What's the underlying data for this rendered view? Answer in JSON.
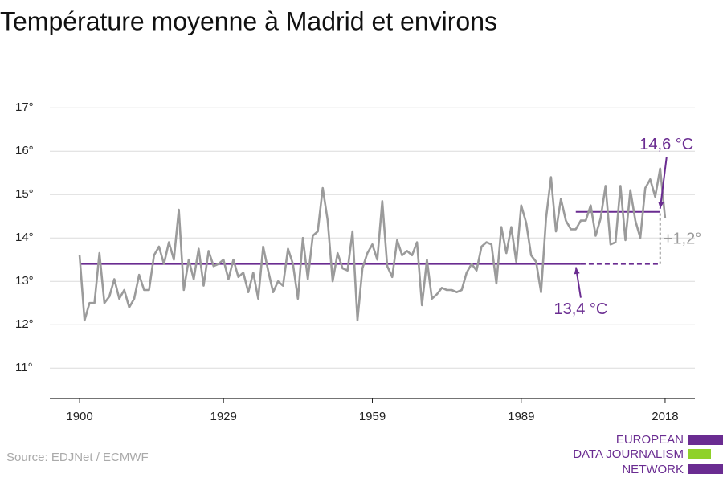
{
  "chart_data": {
    "type": "line",
    "title": "Température moyenne à Madrid et environs",
    "source": "Source: EDJNet / ECMWF",
    "logo": [
      "EUROPEAN",
      "DATA JOURNALISM",
      "NETWORK"
    ],
    "x": [
      1900,
      1901,
      1902,
      1903,
      1904,
      1905,
      1906,
      1907,
      1908,
      1909,
      1910,
      1911,
      1912,
      1913,
      1914,
      1915,
      1916,
      1917,
      1918,
      1919,
      1920,
      1921,
      1922,
      1923,
      1924,
      1925,
      1926,
      1927,
      1928,
      1929,
      1930,
      1931,
      1932,
      1933,
      1934,
      1935,
      1936,
      1937,
      1938,
      1939,
      1940,
      1941,
      1942,
      1943,
      1944,
      1945,
      1946,
      1947,
      1948,
      1949,
      1950,
      1951,
      1952,
      1953,
      1954,
      1955,
      1956,
      1957,
      1958,
      1959,
      1960,
      1961,
      1962,
      1963,
      1964,
      1965,
      1966,
      1967,
      1968,
      1969,
      1970,
      1971,
      1972,
      1973,
      1974,
      1975,
      1976,
      1977,
      1978,
      1979,
      1980,
      1981,
      1982,
      1983,
      1984,
      1985,
      1986,
      1987,
      1988,
      1989,
      1990,
      1991,
      1992,
      1993,
      1994,
      1995,
      1996,
      1997,
      1998,
      1999,
      2000,
      2001,
      2002,
      2003,
      2004,
      2005,
      2006,
      2007,
      2008,
      2009,
      2010,
      2011,
      2012,
      2013,
      2014,
      2015,
      2016,
      2017,
      2018
    ],
    "series": [
      {
        "name": "Température",
        "color": "#9b9b9b",
        "values": [
          13.6,
          12.1,
          12.5,
          12.5,
          13.65,
          12.5,
          12.65,
          13.05,
          12.6,
          12.8,
          12.4,
          12.6,
          13.15,
          12.8,
          12.8,
          13.6,
          13.8,
          13.4,
          13.9,
          13.5,
          14.65,
          12.8,
          13.5,
          13.05,
          13.75,
          12.9,
          13.7,
          13.35,
          13.4,
          13.5,
          13.05,
          13.5,
          13.1,
          13.2,
          12.75,
          13.2,
          12.6,
          13.8,
          13.25,
          12.75,
          13.0,
          12.9,
          13.75,
          13.4,
          12.6,
          14.0,
          13.05,
          14.05,
          14.15,
          15.15,
          14.4,
          13.0,
          13.65,
          13.3,
          13.25,
          14.15,
          12.1,
          13.3,
          13.65,
          13.85,
          13.5,
          14.85,
          13.35,
          13.1,
          13.95,
          13.6,
          13.7,
          13.6,
          13.9,
          12.45,
          13.5,
          12.6,
          12.7,
          12.85,
          12.8,
          12.8,
          12.75,
          12.8,
          13.2,
          13.4,
          13.25,
          13.8,
          13.9,
          13.85,
          12.95,
          14.25,
          13.65,
          14.25,
          13.45,
          14.75,
          14.35,
          13.6,
          13.45,
          12.75,
          14.45,
          15.4,
          14.15,
          14.9,
          14.4,
          14.2,
          14.2,
          14.4,
          14.4,
          14.75,
          14.05,
          14.45,
          15.2,
          13.85,
          13.9,
          15.2,
          13.95,
          15.1,
          14.4,
          14.0,
          15.15,
          15.35,
          14.95,
          15.6,
          14.45
        ]
      }
    ],
    "reference_lines": [
      {
        "label": "13,4 °C",
        "value": 13.4,
        "from": 1900,
        "solid_to": 2001,
        "to": 2017,
        "color": "#6a2c91"
      },
      {
        "label": "14,6 °C",
        "value": 14.6,
        "from": 2000,
        "to": 2017,
        "color": "#6a2c91"
      }
    ],
    "difference": {
      "label": "+1,2°",
      "at": 2017,
      "color": "#9b9b9b"
    },
    "xlim": [
      1894,
      2024
    ],
    "xticks": [
      1900,
      1929,
      1959,
      1989,
      2018
    ],
    "ylim": [
      10.3,
      17.3
    ],
    "yticks": [
      {
        "value": 11,
        "label": "11°"
      },
      {
        "value": 12,
        "label": "12°"
      },
      {
        "value": 13,
        "label": "13°"
      },
      {
        "value": 14,
        "label": "14°"
      },
      {
        "value": 15,
        "label": "15°"
      },
      {
        "value": 16,
        "label": "16°"
      },
      {
        "value": 17,
        "label": "17°"
      }
    ],
    "grid": true
  }
}
